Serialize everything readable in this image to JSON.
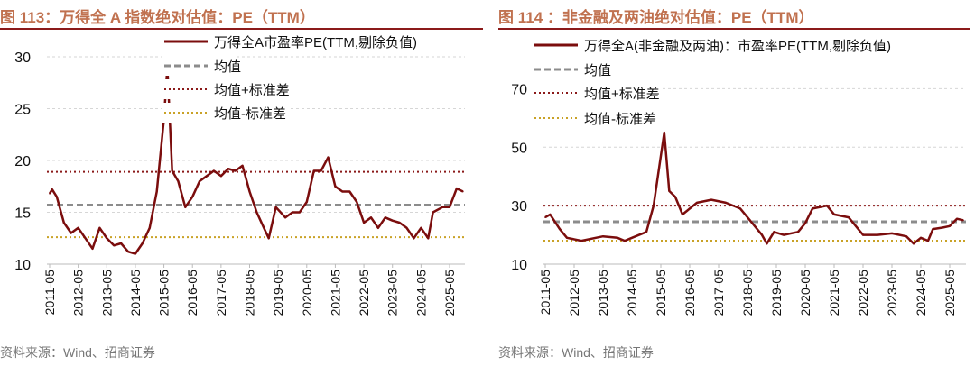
{
  "chart_data": [
    {
      "type": "line",
      "title": "图 113：万得全 A 指数绝对估值：PE（TTM）",
      "source": "资料来源：Wind、招商证券",
      "ylim": [
        10,
        32
      ],
      "yticks": [
        10,
        15,
        20,
        25,
        30
      ],
      "xticks": [
        "2011-05",
        "2012-05",
        "2013-05",
        "2014-05",
        "2015-05",
        "2016-05",
        "2017-05",
        "2018-05",
        "2019-05",
        "2020-05",
        "2021-05",
        "2022-05",
        "2023-05",
        "2024-05",
        "2025-05"
      ],
      "legend": {
        "series": "万得全A市盈率PE(TTM,剔除负值)",
        "mean": "均值",
        "plus": "均值+标准差",
        "minus": "均值-标准差"
      },
      "mean": 15.7,
      "plus_std": 18.9,
      "minus_std": 12.6,
      "x": [
        2011.33,
        2011.42,
        2011.58,
        2011.83,
        2012.08,
        2012.33,
        2012.58,
        2012.83,
        2013.08,
        2013.33,
        2013.58,
        2013.83,
        2014.08,
        2014.33,
        2014.58,
        2014.83,
        2015.08,
        2015.33,
        2015.45,
        2015.62,
        2015.83,
        2016.08,
        2016.33,
        2016.58,
        2016.83,
        2017.08,
        2017.33,
        2017.58,
        2017.83,
        2018.08,
        2018.33,
        2018.58,
        2018.83,
        2019.0,
        2019.25,
        2019.58,
        2019.83,
        2020.08,
        2020.33,
        2020.58,
        2020.83,
        2021.08,
        2021.33,
        2021.58,
        2021.83,
        2022.08,
        2022.33,
        2022.58,
        2022.83,
        2023.08,
        2023.33,
        2023.58,
        2023.83,
        2024.08,
        2024.33,
        2024.58,
        2024.75,
        2025.08,
        2025.33,
        2025.58,
        2025.8
      ],
      "y": [
        16.8,
        17.2,
        16.5,
        14,
        13,
        13.5,
        12.5,
        11.5,
        13.5,
        12.5,
        11.8,
        12,
        11.2,
        11,
        12,
        13.5,
        17,
        24,
        29,
        19,
        18,
        15.5,
        16.5,
        18,
        18.5,
        19,
        18.5,
        19.2,
        19,
        19.5,
        17,
        15,
        13.5,
        12.5,
        15.5,
        14.5,
        15,
        15,
        16,
        19,
        19,
        20.3,
        17.5,
        17,
        17,
        16,
        14,
        14.5,
        13.5,
        14.5,
        14.2,
        14,
        13.5,
        12.5,
        13.5,
        12.5,
        15,
        15.5,
        15.5,
        17.3,
        17
      ]
    },
    {
      "type": "line",
      "title": "图 114 ：非金融及两油绝对估值：PE（TTM）",
      "source": "资料来源：Wind、招商证券",
      "ylim": [
        10,
        88
      ],
      "yticks": [
        10,
        30,
        50,
        70
      ],
      "xticks": [
        "2011-05",
        "2012-05",
        "2013-05",
        "2014-05",
        "2015-05",
        "2016-05",
        "2017-05",
        "2018-05",
        "2019-05",
        "2020-05",
        "2021-05",
        "2022-05",
        "2023-05",
        "2024-05",
        "2025-05"
      ],
      "legend": {
        "series": "万得全A(非金融及两油)：市盈率PE(TTM,剔除负值)",
        "mean": "均值",
        "plus": "均值+标准差",
        "minus": "均值-标准差"
      },
      "mean": 24.5,
      "plus_std": 30,
      "minus_std": 18,
      "x": [
        2011.33,
        2011.5,
        2011.83,
        2012.08,
        2012.58,
        2013.08,
        2013.33,
        2013.83,
        2014.08,
        2014.33,
        2014.83,
        2015.08,
        2015.45,
        2015.62,
        2015.83,
        2016.08,
        2016.33,
        2016.58,
        2017.08,
        2017.58,
        2018.08,
        2018.33,
        2018.83,
        2019.0,
        2019.25,
        2019.58,
        2020.08,
        2020.33,
        2020.58,
        2021.08,
        2021.33,
        2021.83,
        2022.33,
        2022.83,
        2023.33,
        2023.83,
        2024.08,
        2024.33,
        2024.58,
        2024.75,
        2025.08,
        2025.33,
        2025.58,
        2025.8
      ],
      "y": [
        26,
        27,
        22,
        19,
        18,
        19,
        19.5,
        19,
        18,
        19,
        21,
        30,
        55,
        35,
        33,
        27,
        29,
        31,
        32,
        31,
        29,
        26,
        20,
        17,
        21,
        20,
        21,
        24,
        29,
        30,
        27,
        26,
        20,
        20,
        20.5,
        19.5,
        17,
        19,
        18,
        22,
        22.5,
        23,
        25.5,
        25
      ]
    }
  ],
  "colors": {
    "series": "#7b0d0d",
    "mean": "#8c8c8c",
    "plus": "#8b1a1a",
    "minus": "#c9a227",
    "title": "#c0714f"
  }
}
